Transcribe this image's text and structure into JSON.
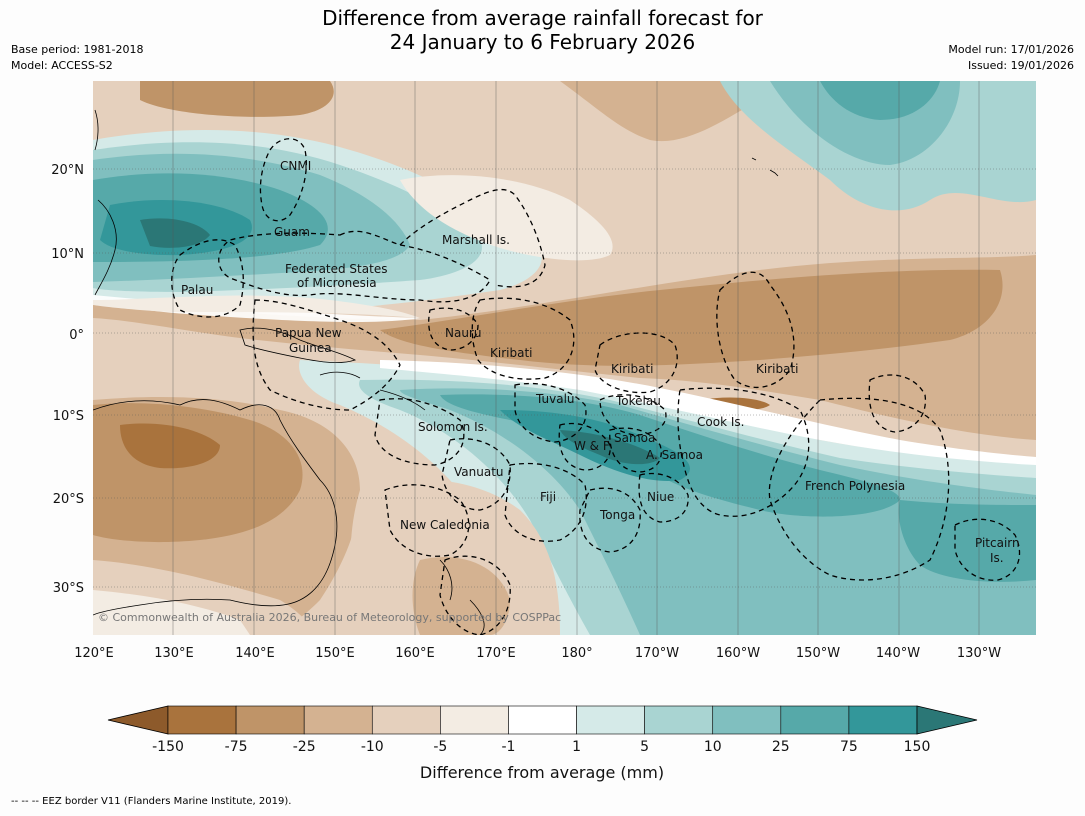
{
  "title_line1": "Difference from average rainfall forecast for",
  "title_line2": "24 January to 6 February 2026",
  "meta_left": [
    "Base period: 1981-2018",
    "Model: ACCESS-S2"
  ],
  "meta_right": [
    "Model run: 17/01/2026",
    "Issued: 19/01/2026"
  ],
  "copyright": "© Commonwealth of Australia 2026, Bureau of Meteorology, supported by COSPPac",
  "footer": "-- -- -- EEZ border V11 (Flanders Marine Institute, 2019).",
  "lat_labels": [
    "20°N",
    "10°N",
    "0°",
    "10°S",
    "20°S",
    "30°S"
  ],
  "lon_labels": [
    "120°E",
    "130°E",
    "140°E",
    "150°E",
    "160°E",
    "170°E",
    "180°",
    "170°W",
    "160°W",
    "150°W",
    "140°W",
    "130°W"
  ],
  "regions": [
    "CNMI",
    "Guam",
    "Marshall Is.",
    "Federated States",
    "of Micronesia",
    "Palau",
    "Papua New",
    "Guinea",
    "Nauru",
    "Kiribati",
    "Kiribati",
    "Kiribati",
    "Tuvalu",
    "Tokelau",
    "Cook Is.",
    "Solomon Is.",
    "W & F",
    "Samoa",
    "A. Samoa",
    "Vanuatu",
    "Fiji",
    "Niue",
    "Tonga",
    "New Caledonia",
    "French Polynesia",
    "Pitcairn",
    "Is."
  ],
  "colorbar": {
    "title": "Difference from average (mm)",
    "ticks": [
      "-150",
      "-75",
      "-25",
      "-10",
      "-5",
      "-1",
      "1",
      "5",
      "10",
      "25",
      "75",
      "150"
    ],
    "colors": [
      "#8d5a2b",
      "#a9733d",
      "#bf9468",
      "#d4b291",
      "#e5d0bd",
      "#f3ece3",
      "#ffffff",
      "#d5eae8",
      "#a9d4d2",
      "#80bfbf",
      "#56a9a9",
      "#33979a",
      "#2b7776"
    ]
  }
}
